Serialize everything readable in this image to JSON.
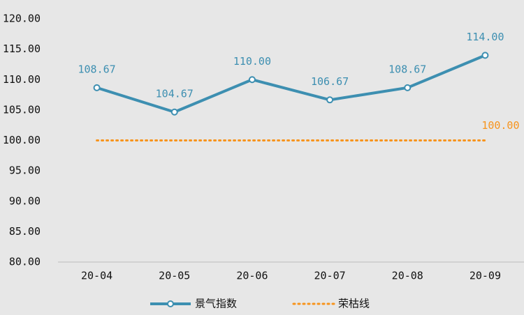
{
  "chart_data": {
    "type": "line",
    "categories": [
      "20-04",
      "20-05",
      "20-06",
      "20-07",
      "20-08",
      "20-09"
    ],
    "series": [
      {
        "name": "景气指数",
        "color": "#3d8fb1",
        "values": [
          108.67,
          104.67,
          110,
          106.67,
          108.67,
          114
        ],
        "value_labels": [
          "108.67",
          "104.67",
          "110.00",
          "106.67",
          "108.67",
          "114.00"
        ],
        "style": "solid",
        "markers": true
      },
      {
        "name": "荣枯线",
        "color": "#f7941d",
        "values": [
          100,
          100,
          100,
          100,
          100,
          100
        ],
        "value_labels": [
          null,
          null,
          null,
          null,
          null,
          "100.00"
        ],
        "style": "dotted",
        "markers": false
      }
    ],
    "ylim": [
      80,
      120
    ],
    "yticks": [
      {
        "value": 80,
        "label": "80.00"
      },
      {
        "value": 85,
        "label": "85.00"
      },
      {
        "value": 90,
        "label": "90.00"
      },
      {
        "value": 95,
        "label": "95.00"
      },
      {
        "value": 100,
        "label": "100.00"
      },
      {
        "value": 105,
        "label": "105.00"
      },
      {
        "value": 110,
        "label": "110.00"
      },
      {
        "value": 115,
        "label": "115.00"
      },
      {
        "value": 120,
        "label": "120.00"
      }
    ],
    "grid": false,
    "legend": "bottom"
  }
}
